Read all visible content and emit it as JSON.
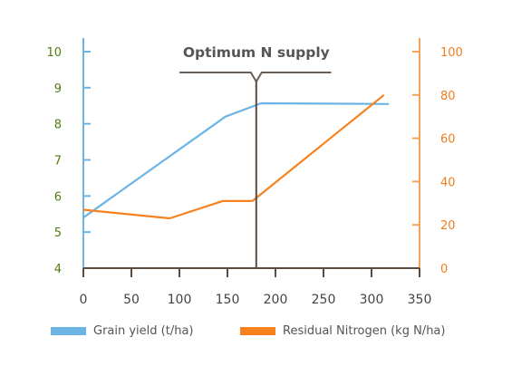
{
  "chart_data": {
    "type": "line",
    "x": {
      "lim": [
        0,
        350
      ],
      "ticks": [
        0,
        50,
        100,
        150,
        200,
        250,
        300,
        350
      ]
    },
    "y_left": {
      "lim": [
        4,
        10
      ],
      "ticks": [
        4,
        5,
        6,
        7,
        8,
        9,
        10
      ],
      "color": "#4e7d12",
      "axis_color": "#6cb4e4"
    },
    "y_right": {
      "lim": [
        0,
        100
      ],
      "ticks": [
        0,
        20,
        40,
        60,
        80,
        100
      ],
      "color": "#f07d1e",
      "axis_color": "#f5a25a"
    },
    "series": [
      {
        "name": "Grain yield (t/ha)",
        "axis": "left",
        "color": "#6cb4e4",
        "points": [
          [
            0,
            5.4
          ],
          [
            148,
            8.2
          ],
          [
            185,
            8.57
          ],
          [
            318,
            8.55
          ]
        ]
      },
      {
        "name": "Residual Nitrogen (kg N/ha)",
        "axis": "right",
        "color": "#f7821e",
        "points": [
          [
            0,
            27
          ],
          [
            90,
            23
          ],
          [
            145,
            31
          ],
          [
            176,
            31
          ],
          [
            313,
            80
          ]
        ]
      }
    ],
    "annotation": {
      "text": "Optimum N supply",
      "x": 180,
      "bracket": [
        100,
        258
      ]
    },
    "grid": false,
    "legend_position": "bottom"
  }
}
